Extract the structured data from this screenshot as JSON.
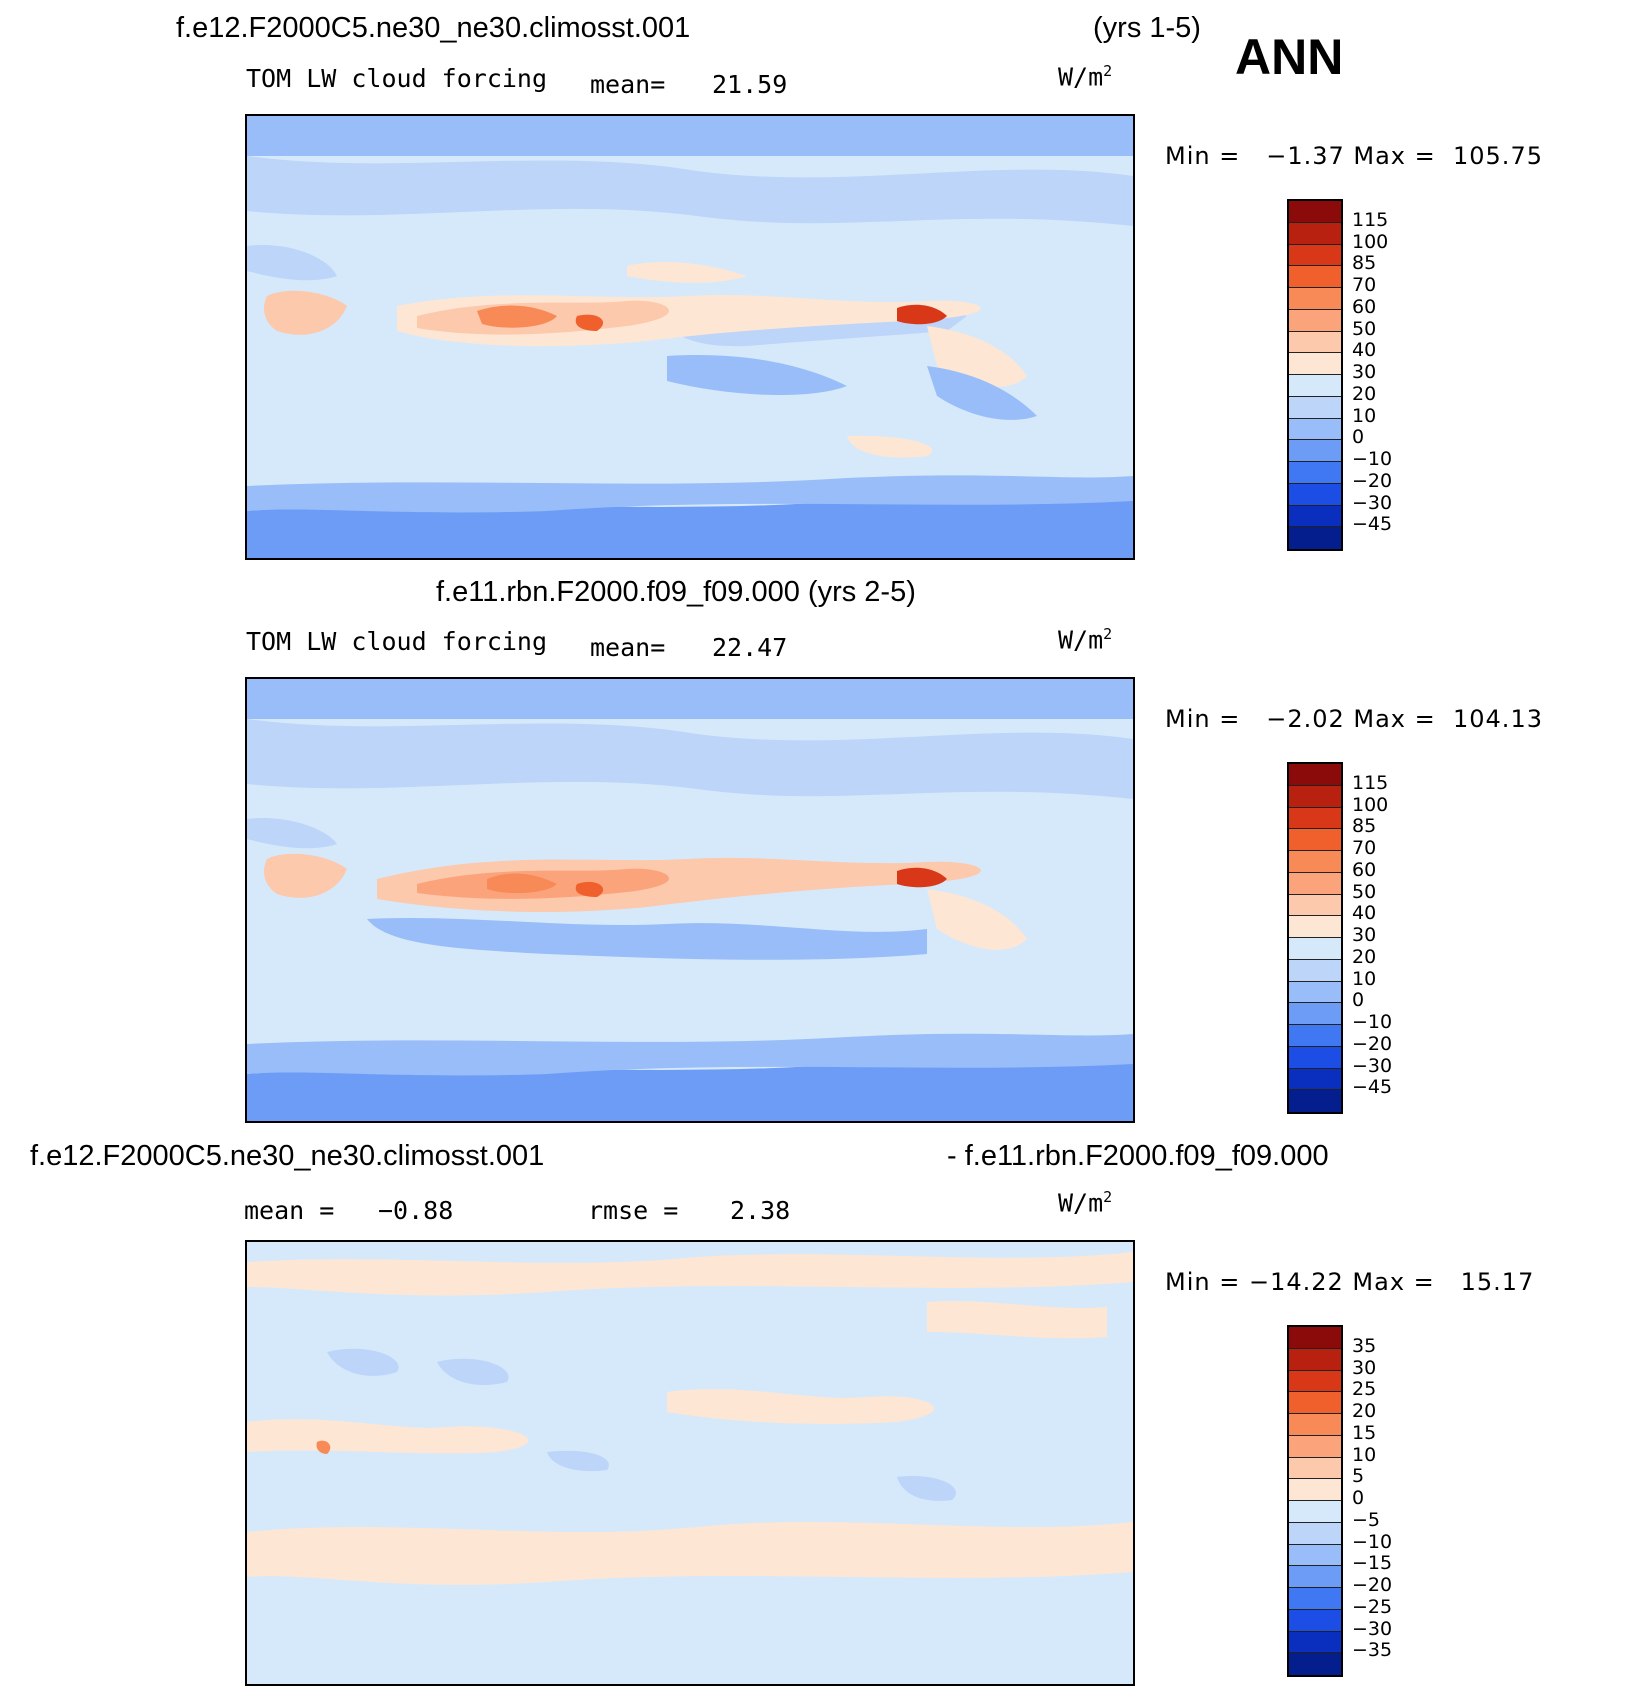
{
  "season": "ANN",
  "panels": [
    {
      "case": "f.e12.F2000C5.ne30_ne30.climosst.001",
      "years": "(yrs 1-5)",
      "variable": "TOM LW cloud forcing",
      "mean_label": "mean=",
      "mean_value": "21.59",
      "units_base": "W/m",
      "units_exp": "2",
      "minmax": "Min =   −1.37 Max =  105.75",
      "colorbar": {
        "labels": [
          "115",
          "100",
          "85",
          "70",
          "60",
          "50",
          "40",
          "30",
          "20",
          "10",
          "0",
          "−10",
          "−20",
          "−30",
          "−45"
        ],
        "colors": [
          "#8b0a0a",
          "#b82010",
          "#d83818",
          "#f0602c",
          "#f88a58",
          "#fba47c",
          "#fcc9ac",
          "#fde6d4",
          "#d6e9fb",
          "#bcd5f9",
          "#98bdf8",
          "#6c9cf6",
          "#3f78f2",
          "#1c4ee6",
          "#0a2fbf",
          "#041e8e"
        ]
      }
    },
    {
      "case": "f.e11.rbn.F2000.f09_f09.000 (yrs 2-5)",
      "variable": "TOM LW cloud forcing",
      "mean_label": "mean=",
      "mean_value": "22.47",
      "units_base": "W/m",
      "units_exp": "2",
      "minmax": "Min =   −2.02 Max =  104.13",
      "colorbar": {
        "labels": [
          "115",
          "100",
          "85",
          "70",
          "60",
          "50",
          "40",
          "30",
          "20",
          "10",
          "0",
          "−10",
          "−20",
          "−30",
          "−45"
        ],
        "colors": [
          "#8b0a0a",
          "#b82010",
          "#d83818",
          "#f0602c",
          "#f88a58",
          "#fba47c",
          "#fcc9ac",
          "#fde6d4",
          "#d6e9fb",
          "#bcd5f9",
          "#98bdf8",
          "#6c9cf6",
          "#3f78f2",
          "#1c4ee6",
          "#0a2fbf",
          "#041e8e"
        ]
      }
    },
    {
      "case_left": "f.e12.F2000C5.ne30_ne30.climosst.001",
      "case_right": "- f.e11.rbn.F2000.f09_f09.000",
      "mean_label": "mean =",
      "mean_value": "−0.88",
      "rmse_label": "rmse =",
      "rmse_value": "2.38",
      "units_base": "W/m",
      "units_exp": "2",
      "minmax": "Min = −14.22 Max =   15.17",
      "colorbar": {
        "labels": [
          "35",
          "30",
          "25",
          "20",
          "15",
          "10",
          "5",
          "0",
          "−5",
          "−10",
          "−15",
          "−20",
          "−25",
          "−30",
          "−35"
        ],
        "colors": [
          "#8b0a0a",
          "#b82010",
          "#d83818",
          "#f0602c",
          "#f88a58",
          "#fba47c",
          "#fcc9ac",
          "#fde6d4",
          "#d6e9fb",
          "#bcd5f9",
          "#98bdf8",
          "#6c9cf6",
          "#3f78f2",
          "#1c4ee6",
          "#0a2fbf",
          "#041e8e"
        ]
      }
    }
  ]
}
